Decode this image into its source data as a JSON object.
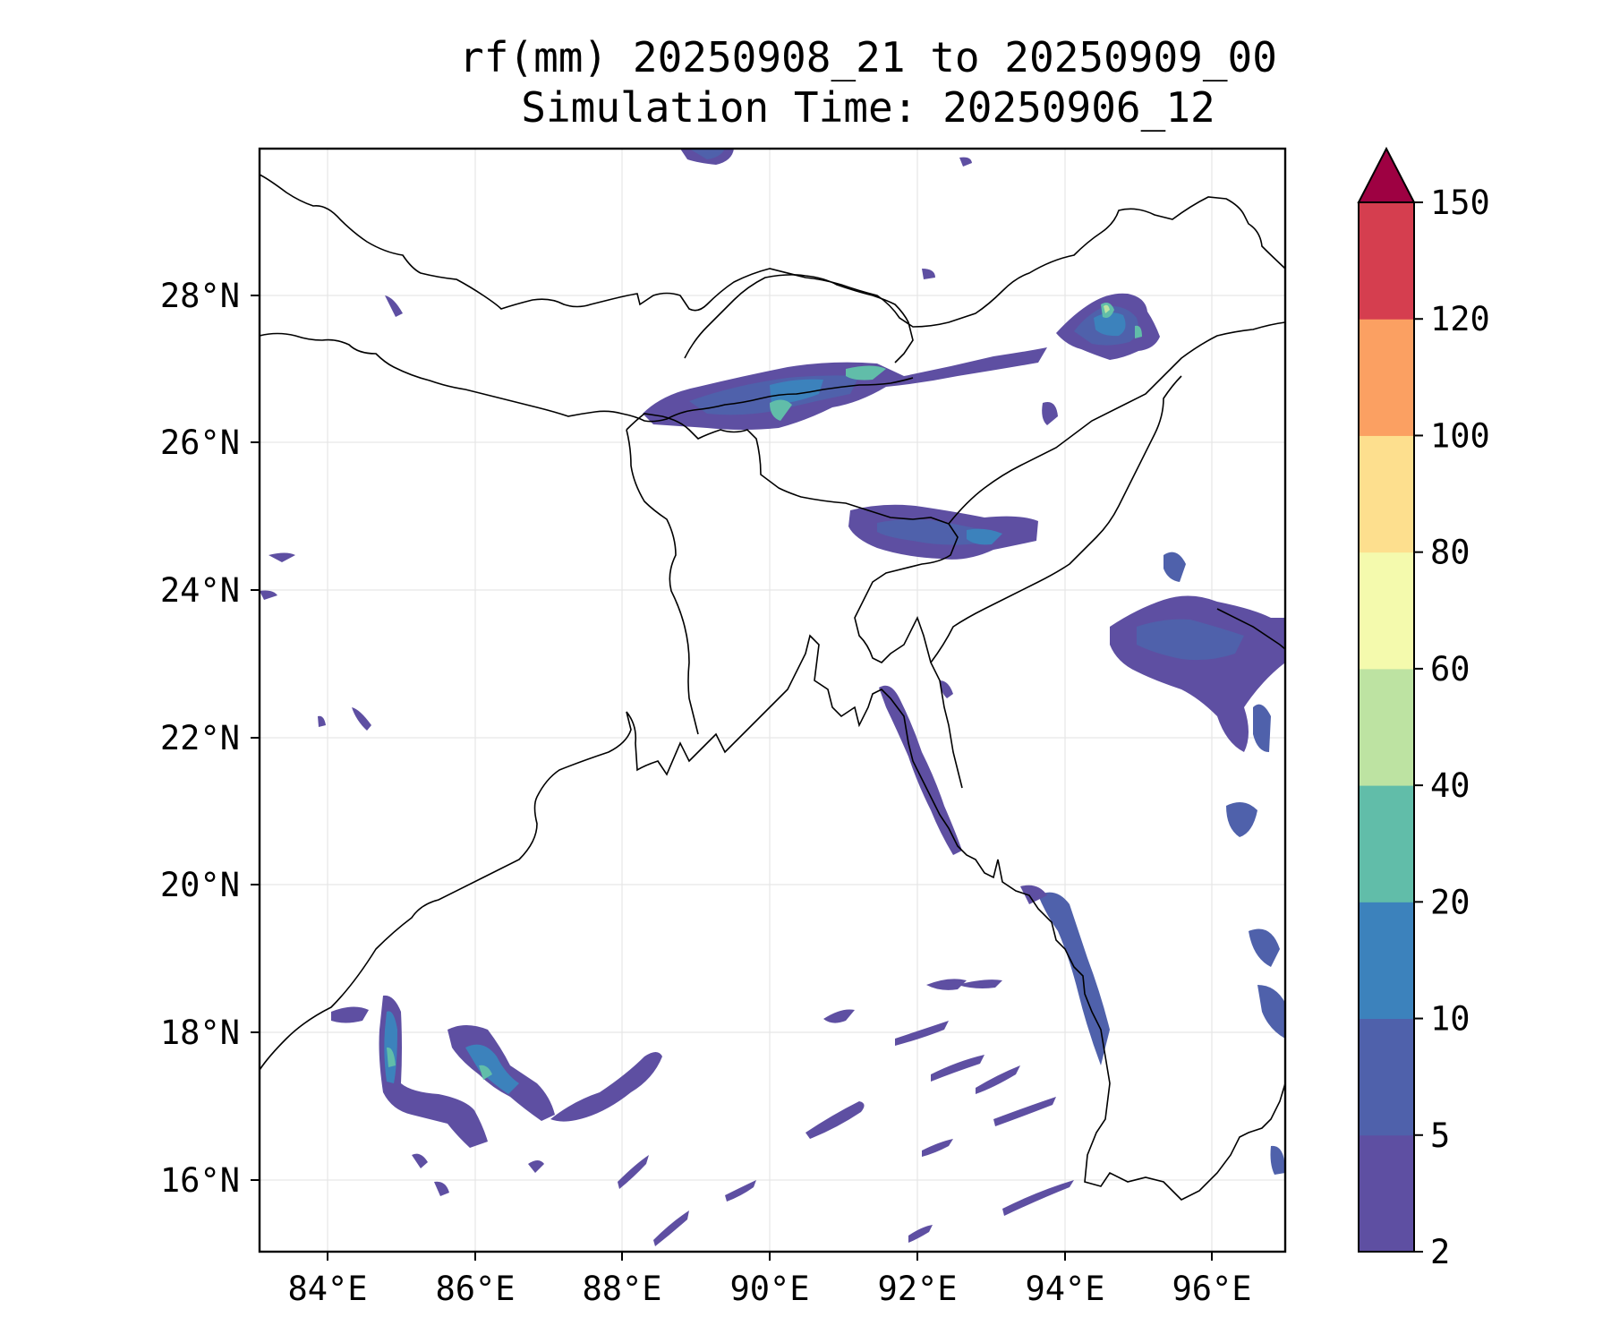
{
  "title": {
    "line1": "rf(mm) 20250908_21 to 20250909_00",
    "line2": "Simulation Time: 20250906_12"
  },
  "map": {
    "lon_range": [
      83,
      97
    ],
    "lat_range": [
      15,
      30
    ],
    "lon_ticks": [
      "84°E",
      "86°E",
      "88°E",
      "90°E",
      "92°E",
      "94°E",
      "96°E"
    ],
    "lat_ticks": [
      "16°N",
      "18°N",
      "20°N",
      "22°N",
      "24°N",
      "26°N",
      "28°N"
    ],
    "gridlines": true,
    "features": [
      "coastline",
      "country-borders"
    ]
  },
  "colorbar": {
    "tick_labels": [
      "2",
      "5",
      "10",
      "20",
      "40",
      "60",
      "80",
      "100",
      "120",
      "150"
    ],
    "colors": [
      "#5e4fa2",
      "#4f61ab",
      "#3c82bc",
      "#61bda9",
      "#bde3a2",
      "#f4faad",
      "#fddf8e",
      "#fba062",
      "#d53e4f"
    ],
    "extend_color": "#9e0142"
  }
}
